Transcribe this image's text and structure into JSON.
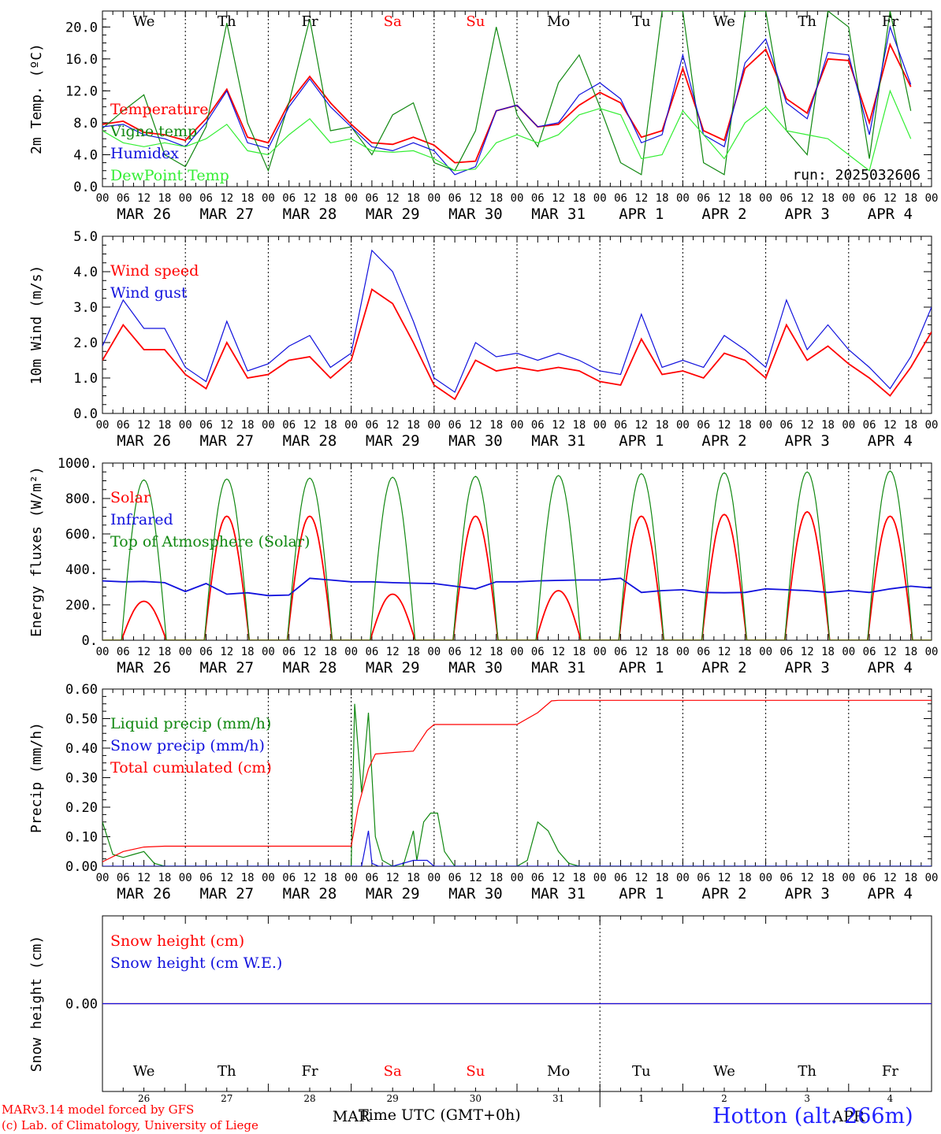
{
  "colors": {
    "temp": "#ff0000",
    "vigne": "#118811",
    "humidex": "#1111dd",
    "dew": "#33ee33",
    "axis": "#000000",
    "weekend": "#ff0000"
  },
  "x_axis": {
    "hour_ticks": [
      "00",
      "06",
      "12",
      "18"
    ],
    "end_tick": "00",
    "dates": [
      "MAR 26",
      "MAR 27",
      "MAR 28",
      "MAR 29",
      "MAR 30",
      "MAR 31",
      "APR  1",
      "APR  2",
      "APR  3",
      "APR  4"
    ],
    "weekdays": [
      "We",
      "Th",
      "Fr",
      "Sa",
      "Su",
      "Mo",
      "Tu",
      "We",
      "Th",
      "Fr"
    ],
    "weekend_days": [
      3,
      4
    ],
    "day_numbers": [
      "26",
      "27",
      "28",
      "29",
      "30",
      "31",
      "1",
      "2",
      "3",
      "4"
    ],
    "month_labels": [
      "MAR",
      "APR"
    ],
    "title": "Time UTC (GMT+0h)"
  },
  "footer": {
    "line1": "MARv3.14 model forced by GFS",
    "line2": "(c) Lab. of Climatology, University of Liege",
    "location": "Hotton (alt. 266m)"
  },
  "chart_data": [
    {
      "type": "line",
      "ylabel": "2m Temp. (ºC)",
      "ylim": [
        0,
        22
      ],
      "yticks": [
        "0.0",
        "4.0",
        "8.0",
        "12.0",
        "16.0",
        "20.0"
      ],
      "ytick_values": [
        0,
        4,
        8,
        12,
        16,
        20
      ],
      "annotation": "run: 2025032606",
      "x_unit": "hours since MAR 26 00 UTC",
      "series": [
        {
          "name": "Temperature",
          "color": "temp",
          "x": [
            0,
            6,
            12,
            18,
            24,
            30,
            36,
            42,
            48,
            54,
            60,
            66,
            72,
            78,
            84,
            90,
            96,
            102,
            108,
            114,
            120,
            126,
            132,
            138,
            144,
            150,
            156,
            162,
            168,
            174,
            180,
            186,
            192,
            198,
            204,
            210,
            216,
            222,
            228,
            234
          ],
          "values": [
            7.8,
            8.2,
            6.8,
            6.5,
            5.8,
            8.5,
            12.2,
            6.2,
            5.5,
            10.5,
            13.8,
            10.5,
            7.8,
            5.5,
            5.3,
            6.2,
            5.2,
            3.0,
            3.2,
            9.5,
            10.2,
            7.5,
            7.8,
            10.2,
            11.8,
            10.5,
            6.2,
            7.0,
            14.8,
            7.0,
            5.8,
            14.8,
            17.2,
            11.0,
            9.2,
            16.0,
            15.8,
            8.0,
            17.8,
            12.5
          ]
        },
        {
          "name": "Vigne temp",
          "color": "vigne",
          "x": [
            0,
            6,
            12,
            18,
            24,
            30,
            36,
            42,
            48,
            54,
            60,
            66,
            72,
            78,
            84,
            90,
            96,
            102,
            108,
            114,
            120,
            126,
            132,
            138,
            144,
            150,
            156,
            162,
            168,
            174,
            180,
            186,
            192,
            198,
            204,
            210,
            216,
            222,
            228,
            234
          ],
          "values": [
            7.3,
            9.5,
            11.5,
            4.0,
            2.5,
            7.5,
            20.5,
            8.0,
            2.0,
            10.5,
            21.0,
            7.0,
            7.5,
            4.0,
            9.0,
            10.5,
            3.0,
            2.0,
            7.0,
            20.0,
            9.0,
            5.0,
            13.0,
            16.5,
            10.0,
            3.0,
            1.5,
            22.0,
            22.0,
            3.0,
            1.5,
            22.0,
            22.0,
            7.0,
            4.0,
            22.0,
            20.0,
            3.5,
            22.0,
            9.5
          ]
        },
        {
          "name": "Humidex",
          "color": "humidex",
          "x": [
            0,
            6,
            12,
            18,
            24,
            30,
            36,
            42,
            48,
            54,
            60,
            66,
            72,
            78,
            84,
            90,
            96,
            102,
            108,
            114,
            120,
            126,
            132,
            138,
            144,
            150,
            156,
            162,
            168,
            174,
            180,
            186,
            192,
            198,
            204,
            210,
            216,
            222,
            228,
            234
          ],
          "values": [
            7.5,
            7.8,
            6.5,
            6.0,
            5.0,
            8.0,
            12.0,
            5.5,
            4.8,
            10.0,
            13.5,
            10.0,
            7.5,
            5.0,
            4.5,
            5.5,
            4.5,
            1.5,
            2.5,
            9.5,
            10.2,
            7.5,
            8.0,
            11.5,
            13.0,
            11.0,
            5.5,
            6.5,
            16.5,
            6.5,
            5.0,
            15.5,
            18.5,
            10.5,
            8.5,
            16.8,
            16.5,
            6.5,
            20.0,
            12.8
          ]
        },
        {
          "name": "DewPoint Temp",
          "color": "dew",
          "x": [
            0,
            6,
            12,
            18,
            24,
            30,
            36,
            42,
            48,
            54,
            60,
            66,
            72,
            78,
            84,
            90,
            96,
            102,
            108,
            114,
            120,
            126,
            132,
            138,
            144,
            150,
            156,
            162,
            168,
            174,
            180,
            186,
            192,
            198,
            204,
            210,
            216,
            222,
            228,
            234
          ],
          "values": [
            7.0,
            5.5,
            5.0,
            5.5,
            5.0,
            6.0,
            7.8,
            4.5,
            4.0,
            6.5,
            8.5,
            5.5,
            6.0,
            4.5,
            4.3,
            4.5,
            3.5,
            2.0,
            2.2,
            5.5,
            6.5,
            5.5,
            6.5,
            9.0,
            9.8,
            9.0,
            3.5,
            4.0,
            9.5,
            6.5,
            3.5,
            8.0,
            10.0,
            7.0,
            6.5,
            6.0,
            4.0,
            2.0,
            12.0,
            6.0
          ]
        }
      ]
    },
    {
      "type": "line",
      "ylabel": "10m Wind (m/s)",
      "ylim": [
        0,
        5
      ],
      "yticks": [
        "0.0",
        "1.0",
        "2.0",
        "3.0",
        "4.0",
        "5.0"
      ],
      "ytick_values": [
        0,
        1,
        2,
        3,
        4,
        5
      ],
      "x_unit": "hours since MAR 26 00 UTC",
      "series": [
        {
          "name": "Wind speed",
          "color": "temp",
          "x": [
            0,
            6,
            12,
            18,
            24,
            30,
            36,
            42,
            48,
            54,
            60,
            66,
            72,
            78,
            84,
            90,
            96,
            102,
            108,
            114,
            120,
            126,
            132,
            138,
            144,
            150,
            156,
            162,
            168,
            174,
            180,
            186,
            192,
            198,
            204,
            210,
            216,
            222,
            228,
            234,
            240
          ],
          "values": [
            1.5,
            2.5,
            1.8,
            1.8,
            1.1,
            0.7,
            2.0,
            1.0,
            1.1,
            1.5,
            1.6,
            1.0,
            1.5,
            3.5,
            3.1,
            2.0,
            0.8,
            0.4,
            1.5,
            1.2,
            1.3,
            1.2,
            1.3,
            1.2,
            0.9,
            0.8,
            2.1,
            1.1,
            1.2,
            1.0,
            1.7,
            1.5,
            1.0,
            2.5,
            1.5,
            1.9,
            1.4,
            1.0,
            0.5,
            1.3,
            2.3
          ]
        },
        {
          "name": "Wind gust",
          "color": "humidex",
          "x": [
            0,
            6,
            12,
            18,
            24,
            30,
            36,
            42,
            48,
            54,
            60,
            66,
            72,
            78,
            84,
            90,
            96,
            102,
            108,
            114,
            120,
            126,
            132,
            138,
            144,
            150,
            156,
            162,
            168,
            174,
            180,
            186,
            192,
            198,
            204,
            210,
            216,
            222,
            228,
            234,
            240
          ],
          "values": [
            1.9,
            3.2,
            2.4,
            2.4,
            1.3,
            0.9,
            2.6,
            1.2,
            1.4,
            1.9,
            2.2,
            1.3,
            1.7,
            4.6,
            4.0,
            2.6,
            1.0,
            0.6,
            2.0,
            1.6,
            1.7,
            1.5,
            1.7,
            1.5,
            1.2,
            1.1,
            2.8,
            1.3,
            1.5,
            1.3,
            2.2,
            1.8,
            1.3,
            3.2,
            1.8,
            2.5,
            1.8,
            1.3,
            0.7,
            1.6,
            3.0
          ]
        }
      ]
    },
    {
      "type": "line",
      "ylabel": "Energy fluxes (W/m²)",
      "ylim": [
        0,
        1000
      ],
      "yticks": [
        "0.",
        "200.",
        "400.",
        "600.",
        "800.",
        "1000."
      ],
      "ytick_values": [
        0,
        200,
        400,
        600,
        800,
        1000
      ],
      "x_unit": "hours since MAR 26 00 UTC",
      "daylight_hours": [
        5.5,
        18.5
      ],
      "series": [
        {
          "name": "Solar",
          "color": "temp",
          "daily_peak": [
            220,
            700,
            700,
            260,
            700,
            280,
            700,
            710,
            725,
            700
          ]
        },
        {
          "name": "Infrared",
          "color": "humidex",
          "x": [
            0,
            6,
            12,
            18,
            24,
            30,
            36,
            42,
            48,
            54,
            60,
            66,
            72,
            78,
            84,
            90,
            96,
            102,
            108,
            114,
            120,
            126,
            132,
            138,
            144,
            150,
            156,
            162,
            168,
            174,
            180,
            186,
            192,
            198,
            204,
            210,
            216,
            222,
            228,
            234,
            240
          ],
          "values": [
            335,
            330,
            332,
            325,
            275,
            320,
            260,
            268,
            252,
            255,
            350,
            340,
            330,
            330,
            325,
            322,
            320,
            305,
            290,
            330,
            330,
            335,
            338,
            340,
            340,
            350,
            270,
            280,
            285,
            270,
            268,
            270,
            290,
            285,
            280,
            270,
            280,
            270,
            290,
            305,
            295
          ]
        },
        {
          "name": "Top of Atmosphere (Solar)",
          "color": "vigne",
          "daily_peak": [
            905,
            910,
            915,
            920,
            925,
            930,
            940,
            945,
            950,
            955
          ]
        }
      ]
    },
    {
      "type": "line",
      "ylabel": "Precip (mm/h)",
      "ylim": [
        0,
        0.6
      ],
      "yticks": [
        "0.00",
        "0.10",
        "0.20",
        "0.30",
        "0.40",
        "0.50",
        "0.60"
      ],
      "ytick_values": [
        0,
        0.1,
        0.2,
        0.3,
        0.4,
        0.5,
        0.6
      ],
      "x_unit": "hours since MAR 26 00 UTC",
      "series": [
        {
          "name": "Liquid precip (mm/h)",
          "color": "vigne",
          "x": [
            0,
            3,
            6,
            9,
            12,
            15,
            18,
            72,
            73,
            75,
            77,
            79,
            81,
            84,
            87,
            90,
            91,
            93,
            95,
            97,
            99,
            102,
            120,
            123,
            126,
            129,
            132,
            135,
            138,
            240
          ],
          "values": [
            0.15,
            0.04,
            0.03,
            0.04,
            0.05,
            0.01,
            0.0,
            0.0,
            0.55,
            0.25,
            0.52,
            0.1,
            0.02,
            0.0,
            0.0,
            0.12,
            0.02,
            0.15,
            0.18,
            0.18,
            0.05,
            0.0,
            0.0,
            0.02,
            0.15,
            0.12,
            0.05,
            0.01,
            0.0,
            0.0
          ]
        },
        {
          "name": "Snow precip (mm/h)",
          "color": "humidex",
          "x": [
            0,
            72,
            75,
            77,
            78,
            80,
            84,
            90,
            94,
            96,
            100,
            240
          ],
          "values": [
            0.0,
            0.0,
            0.0,
            0.12,
            0.01,
            0.0,
            0.0,
            0.02,
            0.02,
            0.0,
            0.0,
            0.0
          ]
        },
        {
          "name": "Total cumulated (cm)",
          "color": "temp",
          "x": [
            0,
            6,
            12,
            18,
            24,
            72,
            74,
            77,
            79,
            84,
            90,
            94,
            96,
            102,
            120,
            126,
            130,
            132,
            240
          ],
          "values": [
            0.015,
            0.05,
            0.065,
            0.068,
            0.068,
            0.068,
            0.2,
            0.33,
            0.38,
            0.385,
            0.39,
            0.46,
            0.48,
            0.48,
            0.48,
            0.52,
            0.56,
            0.562,
            0.562
          ]
        }
      ]
    },
    {
      "type": "line",
      "ylabel": "Snow height (cm)",
      "yticks": [
        "0.00"
      ],
      "ytick_values": [
        0
      ],
      "ylim": [
        -1,
        1
      ],
      "x_unit": "hours since MAR 26 00 UTC",
      "series": [
        {
          "name": "Snow height (cm)",
          "color": "temp",
          "x": [
            0,
            240
          ],
          "values": [
            0,
            0
          ]
        },
        {
          "name": "Snow height (cm W.E.)",
          "color": "humidex",
          "x": [
            0,
            240
          ],
          "values": [
            0,
            0
          ]
        }
      ]
    }
  ]
}
